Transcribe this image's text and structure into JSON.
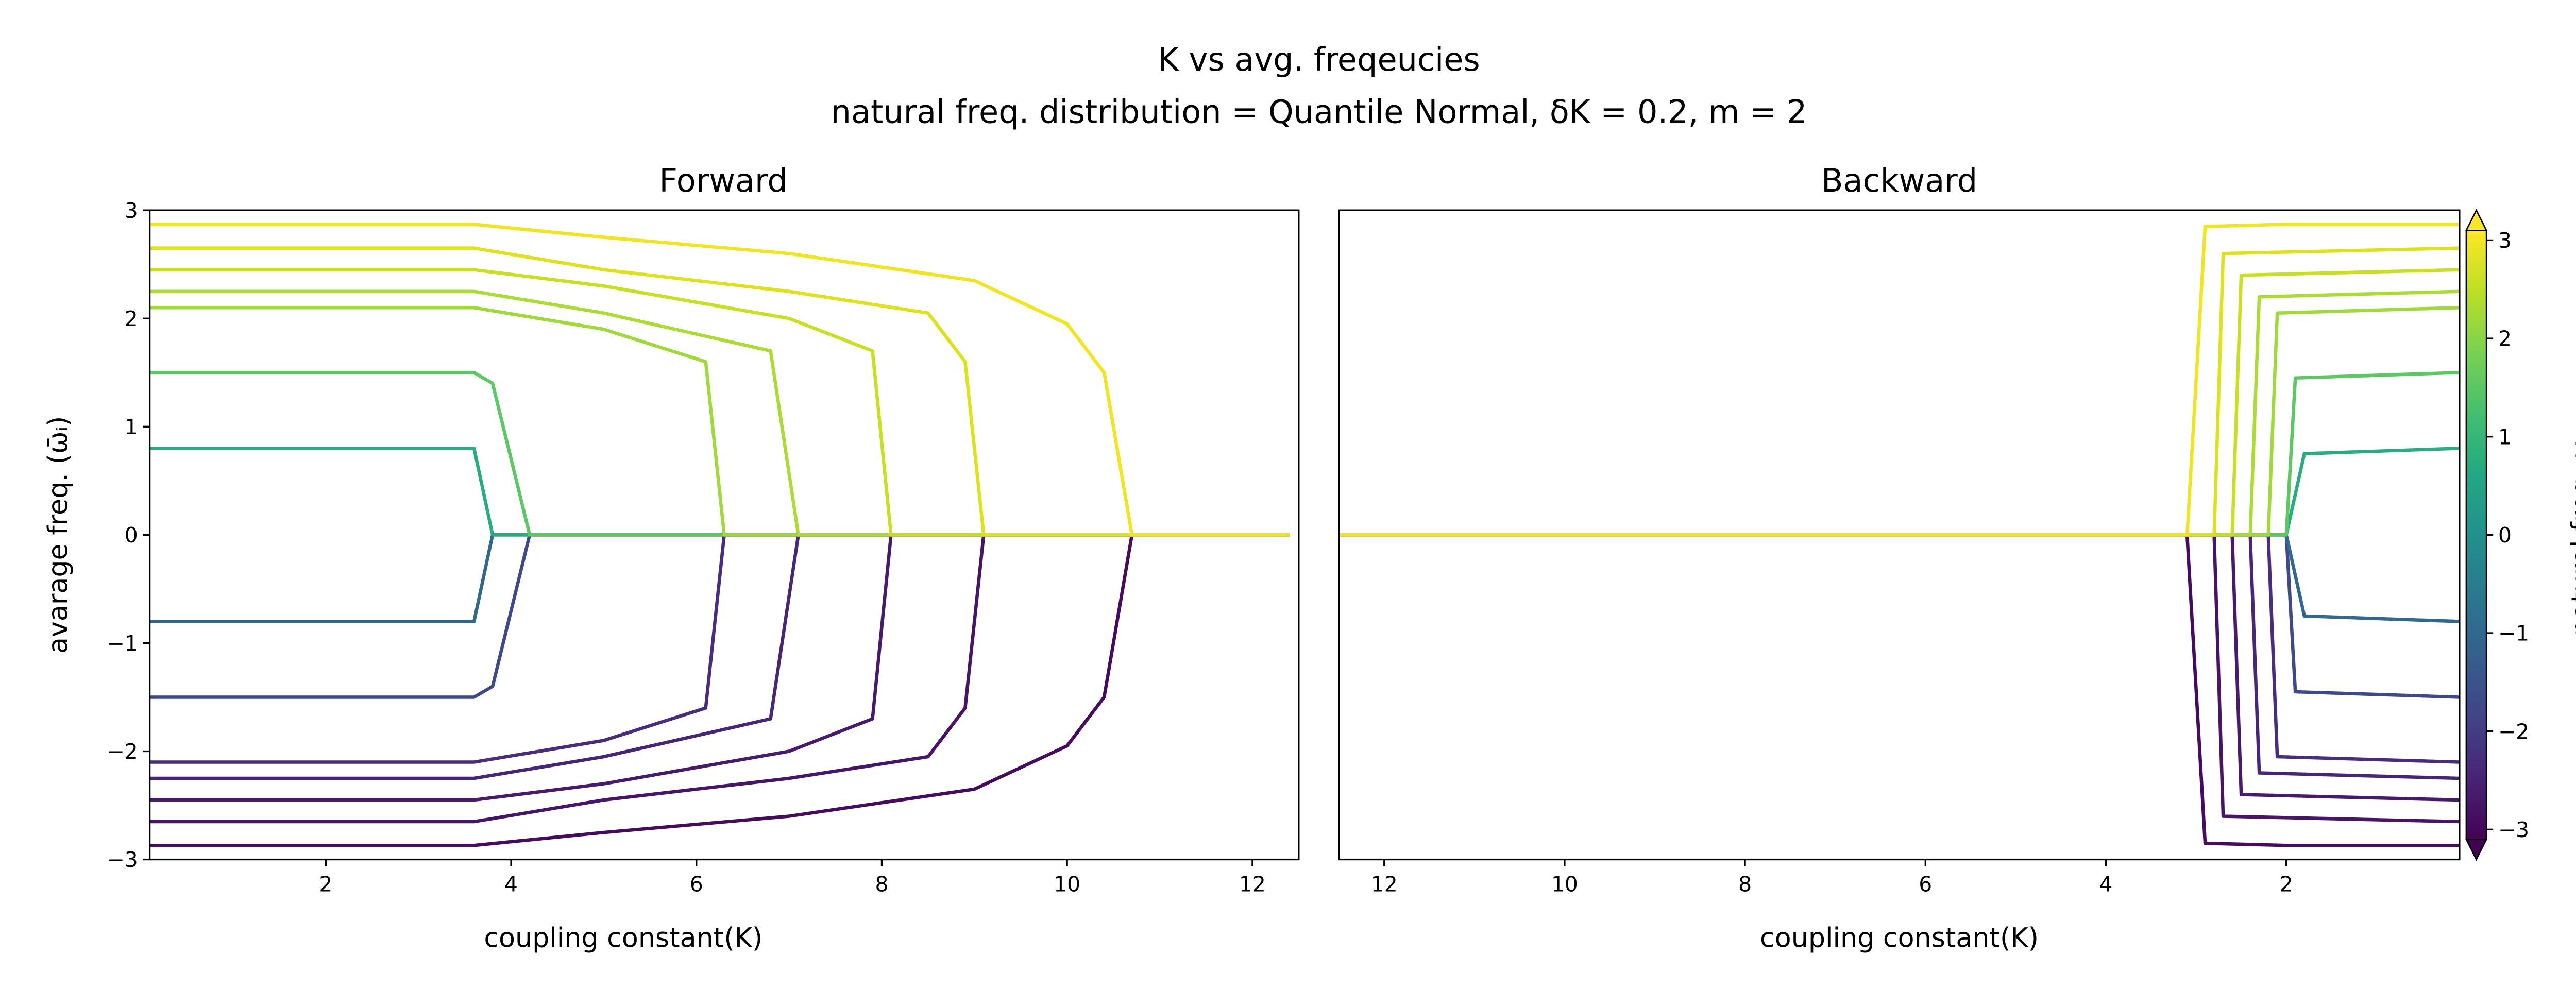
{
  "header": {
    "title": "K vs avg. freqeucies",
    "subtitle": "natural freq. distribution = Quantile Normal, δK = 0.2, m = 2"
  },
  "colorbar": {
    "label": "natural freq. ωᵢ",
    "lim": [
      -3.1,
      3.1
    ],
    "ticks": [
      {
        "value": -3,
        "label": "−3"
      },
      {
        "value": -2,
        "label": "−2"
      },
      {
        "value": -1,
        "label": "−1"
      },
      0,
      1,
      2,
      3
    ]
  },
  "chart_data": [
    {
      "type": "line",
      "title": "Forward",
      "xlabel": "coupling constant(K)",
      "ylabel": "avarage freq. (ω̄ᵢ)",
      "xlim": [
        0.1,
        12.5
      ],
      "xticks": [
        2,
        4,
        6,
        8,
        10,
        12
      ],
      "ylim": [
        -3,
        3
      ],
      "yticks": [
        {
          "value": -3,
          "label": "−3"
        },
        {
          "value": -2,
          "label": "−2"
        },
        {
          "value": -1,
          "label": "−1"
        },
        0,
        1,
        2,
        3
      ],
      "series": [
        {
          "color": "#460b5e",
          "x": [
            0.1,
            3.6,
            5,
            7,
            9,
            10,
            10.4,
            10.7,
            12.4
          ],
          "values": [
            -2.87,
            -2.87,
            -2.75,
            -2.6,
            -2.35,
            -1.95,
            -1.5,
            0,
            0
          ]
        },
        {
          "color": "#481467",
          "x": [
            0.1,
            3.6,
            5,
            7,
            8.5,
            8.9,
            9.1,
            12.4
          ],
          "values": [
            -2.65,
            -2.65,
            -2.45,
            -2.25,
            -2.05,
            -1.6,
            0,
            0
          ]
        },
        {
          "color": "#481a6c",
          "x": [
            0.1,
            3.6,
            5,
            7,
            7.9,
            8.1,
            12.4
          ],
          "values": [
            -2.45,
            -2.45,
            -2.3,
            -2.0,
            -1.7,
            0,
            0
          ]
        },
        {
          "color": "#482677",
          "x": [
            0.1,
            3.6,
            5,
            6.8,
            7.1,
            12.4
          ],
          "values": [
            -2.25,
            -2.25,
            -2.05,
            -1.7,
            0,
            0
          ]
        },
        {
          "color": "#472d7b",
          "x": [
            0.1,
            3.6,
            5,
            6.1,
            6.3,
            12.4
          ],
          "values": [
            -2.1,
            -2.1,
            -1.9,
            -1.6,
            0,
            0
          ]
        },
        {
          "color": "#3e4989",
          "x": [
            0.1,
            3.6,
            3.8,
            4.2,
            12.4
          ],
          "values": [
            -1.5,
            -1.5,
            -1.4,
            0,
            0
          ]
        },
        {
          "color": "#31688e",
          "x": [
            0.1,
            3.6,
            3.8,
            12.4
          ],
          "values": [
            -0.8,
            -0.8,
            0,
            0
          ]
        },
        {
          "color": "#27ad81",
          "x": [
            0.1,
            3.6,
            3.8,
            12.4
          ],
          "values": [
            0.8,
            0.8,
            0,
            0
          ]
        },
        {
          "color": "#5cc863",
          "x": [
            0.1,
            3.6,
            3.8,
            4.2,
            12.4
          ],
          "values": [
            1.5,
            1.5,
            1.4,
            0,
            0
          ]
        },
        {
          "color": "#9fda3a",
          "x": [
            0.1,
            3.6,
            5,
            6.1,
            6.3,
            12.4
          ],
          "values": [
            2.1,
            2.1,
            1.9,
            1.6,
            0,
            0
          ]
        },
        {
          "color": "#aadc32",
          "x": [
            0.1,
            3.6,
            5,
            6.8,
            7.1,
            12.4
          ],
          "values": [
            2.25,
            2.25,
            2.05,
            1.7,
            0,
            0
          ]
        },
        {
          "color": "#c8e020",
          "x": [
            0.1,
            3.6,
            5,
            7,
            7.9,
            8.1,
            12.4
          ],
          "values": [
            2.45,
            2.45,
            2.3,
            2.0,
            1.7,
            0,
            0
          ]
        },
        {
          "color": "#dde318",
          "x": [
            0.1,
            3.6,
            5,
            7,
            8.5,
            8.9,
            9.1,
            12.4
          ],
          "values": [
            2.65,
            2.65,
            2.45,
            2.25,
            2.05,
            1.6,
            0,
            0
          ]
        },
        {
          "color": "#f1e51d",
          "x": [
            0.1,
            3.6,
            5,
            7,
            9,
            10,
            10.4,
            10.7,
            12.4
          ],
          "values": [
            2.87,
            2.87,
            2.75,
            2.6,
            2.35,
            1.95,
            1.5,
            0,
            0
          ]
        }
      ]
    },
    {
      "type": "line",
      "title": "Backward",
      "xlabel": "coupling constant(K)",
      "xlim": [
        12.5,
        0.08
      ],
      "xticks": [
        12,
        10,
        8,
        6,
        4,
        2
      ],
      "ylim": [
        -3,
        3
      ],
      "series": [
        {
          "color": "#460b5e",
          "x": [
            12.5,
            3.1,
            2.9,
            2.0,
            0.08
          ],
          "values": [
            0,
            0,
            -2.85,
            -2.87,
            -2.87
          ]
        },
        {
          "color": "#481467",
          "x": [
            12.5,
            2.8,
            2.7,
            0.08
          ],
          "values": [
            0,
            0,
            -2.6,
            -2.65
          ]
        },
        {
          "color": "#481a6c",
          "x": [
            12.5,
            2.6,
            2.5,
            0.08
          ],
          "values": [
            0,
            0,
            -2.4,
            -2.45
          ]
        },
        {
          "color": "#482677",
          "x": [
            12.5,
            2.4,
            2.3,
            0.08
          ],
          "values": [
            0,
            0,
            -2.2,
            -2.25
          ]
        },
        {
          "color": "#472d7b",
          "x": [
            12.5,
            2.2,
            2.1,
            0.08
          ],
          "values": [
            0,
            0,
            -2.05,
            -2.1
          ]
        },
        {
          "color": "#3e4989",
          "x": [
            12.5,
            2.0,
            1.9,
            0.08
          ],
          "values": [
            0,
            0,
            -1.45,
            -1.5
          ]
        },
        {
          "color": "#31688e",
          "x": [
            12.5,
            2.0,
            1.8,
            0.08
          ],
          "values": [
            0,
            0,
            -0.75,
            -0.8
          ]
        },
        {
          "color": "#27ad81",
          "x": [
            12.5,
            2.0,
            1.8,
            0.08
          ],
          "values": [
            0,
            0,
            0.75,
            0.8
          ]
        },
        {
          "color": "#5cc863",
          "x": [
            12.5,
            2.0,
            1.9,
            0.08
          ],
          "values": [
            0,
            0,
            1.45,
            1.5
          ]
        },
        {
          "color": "#9fda3a",
          "x": [
            12.5,
            2.2,
            2.1,
            0.08
          ],
          "values": [
            0,
            0,
            2.05,
            2.1
          ]
        },
        {
          "color": "#aadc32",
          "x": [
            12.5,
            2.4,
            2.3,
            0.08
          ],
          "values": [
            0,
            0,
            2.2,
            2.25
          ]
        },
        {
          "color": "#c8e020",
          "x": [
            12.5,
            2.6,
            2.5,
            0.08
          ],
          "values": [
            0,
            0,
            2.4,
            2.45
          ]
        },
        {
          "color": "#dde318",
          "x": [
            12.5,
            2.8,
            2.7,
            0.08
          ],
          "values": [
            0,
            0,
            2.6,
            2.65
          ]
        },
        {
          "color": "#f1e51d",
          "x": [
            12.5,
            3.1,
            2.9,
            2.0,
            0.08
          ],
          "values": [
            0,
            0,
            2.85,
            2.87,
            2.87
          ]
        }
      ]
    }
  ]
}
